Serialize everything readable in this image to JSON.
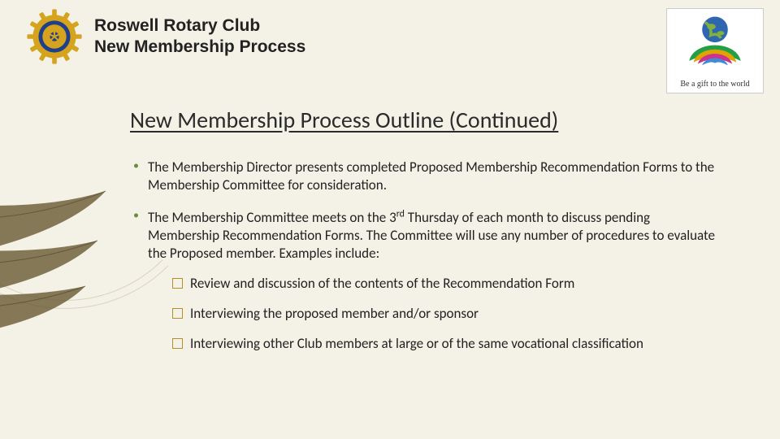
{
  "header": {
    "line1": "Roswell Rotary Club",
    "line2": "New Membership Process"
  },
  "theme": {
    "caption": "Be a gift to the world",
    "globe_color": "#2f66b0",
    "petal_colors": [
      "#21a049",
      "#e0a400",
      "#cc3390",
      "#3f8cd6"
    ]
  },
  "logo": {
    "gear_color": "#d6a31e",
    "center_color": "#1f3f8a",
    "band_color": "#1f3f8a"
  },
  "title": "New Membership Process Outline (Continued)",
  "bullets": [
    {
      "text": "The Membership Director presents completed Proposed Membership Recommendation Forms to the Membership Committee for consideration."
    },
    {
      "text_html": "The Membership Committee meets on the 3<sup>rd</sup> Thursday of each month to discuss pending Membership Recommendation Forms. The Committee will use any number of procedures to evaluate the Proposed member. Examples include:",
      "sub": [
        "Review and discussion of the contents of the Recommendation Form",
        "Interviewing the proposed member and/or sponsor",
        "Interviewing other Club members at large or of the same vocational classification"
      ]
    }
  ],
  "style": {
    "background": "#f4f1e6",
    "bullet_color": "#6b8e3a",
    "sub_bullet_border": "#b59028",
    "title_fontsize": 28,
    "body_fontsize": 17,
    "deco_leaf_color": "#6a5a33"
  }
}
